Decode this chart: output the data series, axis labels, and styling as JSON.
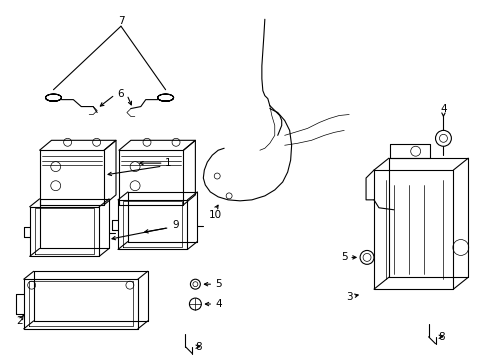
{
  "bg_color": "#ffffff",
  "line_color": "#000000",
  "fig_width": 4.89,
  "fig_height": 3.6,
  "dpi": 100,
  "lw": 0.8,
  "thin_lw": 0.5,
  "font_size": 7.5
}
